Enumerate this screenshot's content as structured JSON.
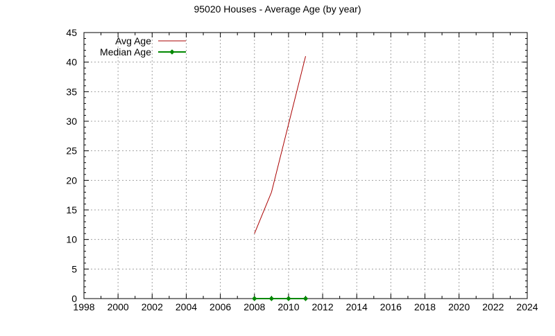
{
  "chart_data": {
    "type": "line",
    "title": "95020 Houses - Average Age (by year)",
    "xlabel": "",
    "ylabel": "",
    "xlim": [
      1998,
      2024
    ],
    "ylim": [
      0,
      45
    ],
    "xticks": [
      "1998",
      "2000",
      "2002",
      "2004",
      "2006",
      "2008",
      "2010",
      "2012",
      "2014",
      "2016",
      "2018",
      "2020",
      "2022",
      "2024"
    ],
    "yticks": [
      "0",
      "5",
      "10",
      "15",
      "20",
      "25",
      "30",
      "35",
      "40",
      "45"
    ],
    "grid": true,
    "legend_position": "top-left",
    "series": [
      {
        "name": "Avg Age",
        "color": "#aa0000",
        "marker": "none",
        "x": [
          2008,
          2009,
          2010,
          2011
        ],
        "y": [
          11,
          18,
          29.5,
          41
        ]
      },
      {
        "name": "Median Age",
        "color": "#008800",
        "marker": "diamond",
        "x": [
          2008,
          2009,
          2010,
          2011
        ],
        "y": [
          0,
          0,
          0,
          0
        ]
      }
    ]
  }
}
